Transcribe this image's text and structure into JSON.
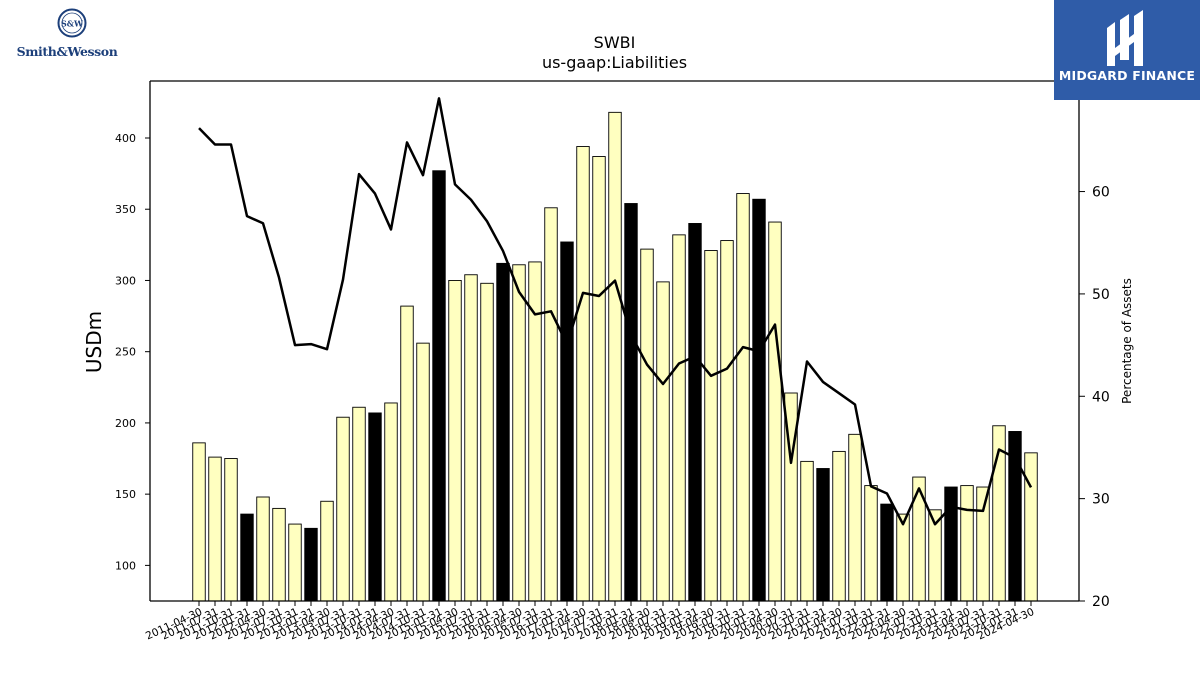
{
  "logos": {
    "left_brand": "Smith&Wesson",
    "left_brand_symbol": "S&W",
    "right_brand": "MIDGARD FINANCE"
  },
  "colors": {
    "bar_fill": "#ffffc0",
    "bar_highlight": "#000000",
    "bar_edge": "#000000",
    "line": "#000000",
    "brand_blue": "#2f5ca8"
  },
  "chart_data": {
    "type": "bar",
    "title": "SWBI",
    "subtitle": "us-gaap:Liabilities",
    "ylabel": "USDm",
    "y2label": "Percentage of Assets",
    "ylim": [
      75,
      440
    ],
    "y2lim": [
      20,
      70.8
    ],
    "yticks": [
      100,
      150,
      200,
      250,
      300,
      350,
      400
    ],
    "y2ticks": [
      20,
      30,
      40,
      50,
      60
    ],
    "grid": false,
    "categories": [
      "2011-04-30",
      "2011-07-31",
      "2011-10-31",
      "2012-01-31",
      "2012-04-30",
      "2012-07-31",
      "2012-10-31",
      "2013-01-31",
      "2013-04-30",
      "2013-07-31",
      "2013-10-31",
      "2014-01-31",
      "2014-04-30",
      "2014-07-31",
      "2014-10-31",
      "2015-01-31",
      "2015-04-30",
      "2015-07-31",
      "2015-10-31",
      "2016-01-31",
      "2016-04-30",
      "2016-07-31",
      "2016-10-31",
      "2017-01-31",
      "2017-04-30",
      "2017-07-31",
      "2017-10-31",
      "2018-01-31",
      "2018-04-30",
      "2018-07-31",
      "2018-10-31",
      "2019-01-31",
      "2019-04-30",
      "2019-07-31",
      "2019-10-31",
      "2020-01-31",
      "2020-04-30",
      "2020-07-31",
      "2020-10-31",
      "2021-01-31",
      "2021-04-30",
      "2021-07-31",
      "2021-10-31",
      "2022-01-31",
      "2022-04-30",
      "2022-07-31",
      "2022-10-31",
      "2023-01-31",
      "2023-04-30",
      "2023-07-31",
      "2023-10-31",
      "2024-01-31",
      "2024-04-30"
    ],
    "series": [
      {
        "name": "Liabilities",
        "type": "bar",
        "values": [
          186,
          176,
          175,
          136,
          148,
          140,
          129,
          126,
          145,
          204,
          211,
          207,
          214,
          282,
          256,
          377,
          300,
          304,
          298,
          312,
          311,
          313,
          351,
          327,
          394,
          387,
          418,
          354,
          322,
          299,
          332,
          340,
          321,
          328,
          361,
          357,
          341,
          221,
          173,
          168,
          180,
          192,
          156,
          143,
          136,
          162,
          139,
          155,
          156,
          155,
          198,
          194,
          179
        ],
        "highlight": [
          false,
          false,
          false,
          true,
          false,
          false,
          false,
          true,
          false,
          false,
          false,
          true,
          false,
          false,
          false,
          true,
          false,
          false,
          false,
          true,
          false,
          false,
          false,
          true,
          false,
          false,
          false,
          true,
          false,
          false,
          false,
          true,
          false,
          false,
          false,
          true,
          false,
          false,
          false,
          true,
          false,
          false,
          false,
          true,
          false,
          false,
          false,
          true,
          false,
          false,
          false,
          true,
          false
        ]
      },
      {
        "name": "Percentage of Assets",
        "type": "line",
        "axis": "right",
        "values": [
          66.2,
          64.6,
          64.6,
          57.6,
          56.9,
          51.6,
          45.0,
          45.1,
          44.6,
          51.4,
          61.7,
          59.8,
          56.3,
          64.8,
          61.6,
          69.1,
          60.7,
          59.2,
          57.1,
          54.2,
          50.2,
          48.0,
          48.3,
          45.1,
          50.1,
          49.8,
          51.3,
          46.0,
          43.1,
          41.2,
          43.2,
          43.9,
          42.0,
          42.7,
          44.8,
          44.4,
          47.0,
          33.5,
          43.4,
          41.4,
          40.3,
          39.2,
          31.2,
          30.5,
          27.5,
          31.0,
          27.5,
          29.2,
          28.9,
          28.8,
          34.8,
          34.0,
          31.1
        ]
      }
    ]
  }
}
